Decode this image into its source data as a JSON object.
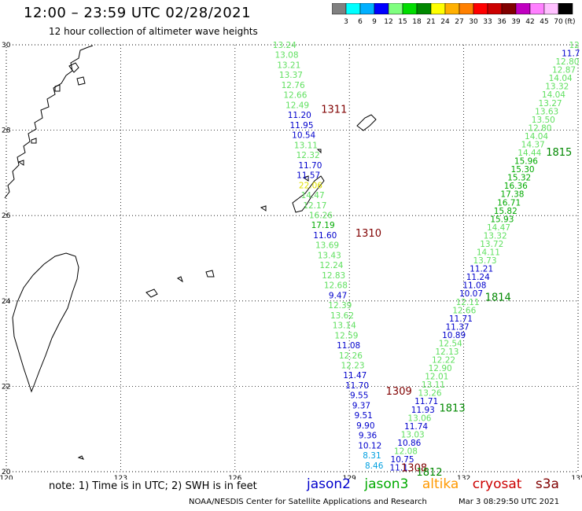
{
  "header": {
    "title": "12:00 – 23:59 UTC 02/28/2021",
    "subtitle": "12 hour collection of altimeter wave heights"
  },
  "colorbar": {
    "labels": [
      "3",
      "6",
      "9",
      "12",
      "15",
      "18",
      "21",
      "24",
      "27",
      "30",
      "33",
      "36",
      "39",
      "42",
      "45",
      "70"
    ],
    "colors": [
      "#808080",
      "#00ffff",
      "#00b0ff",
      "#0000ff",
      "#80ff80",
      "#00dd00",
      "#008800",
      "#ffff00",
      "#ffb000",
      "#ff8000",
      "#ff0000",
      "#cc0000",
      "#800000",
      "#c000c0",
      "#ff80ff",
      "#ff c0ff",
      "#000000"
    ],
    "unit": "(ft)"
  },
  "axes": {
    "lat_labels": [
      "30",
      "28",
      "26",
      "24",
      "22",
      "20"
    ],
    "lon_labels": [
      "120",
      "123",
      "126",
      "129",
      "132",
      "135"
    ]
  },
  "passes": [
    {
      "id": "1311",
      "color": "#800000",
      "lat": 28.5,
      "lon": 128.6
    },
    {
      "id": "1310",
      "color": "#800000",
      "lat": 25.6,
      "lon": 129.5
    },
    {
      "id": "1309",
      "color": "#800000",
      "lat": 21.9,
      "lon": 130.3
    },
    {
      "id": "1308",
      "color": "#800000",
      "lat": 20.1,
      "lon": 130.7
    },
    {
      "id": "1815",
      "color": "#008800",
      "lat": 27.5,
      "lon": 134.5
    },
    {
      "id": "1814",
      "color": "#008800",
      "lat": 24.1,
      "lon": 132.9
    },
    {
      "id": "1813",
      "color": "#008800",
      "lat": 21.5,
      "lon": 131.7
    },
    {
      "id": "1812",
      "color": "#008800",
      "lat": 20.0,
      "lon": 131.1
    }
  ],
  "track_west": [
    {
      "v": "13.24",
      "c": "#60e060"
    },
    {
      "v": "13.08",
      "c": "#60e060"
    },
    {
      "v": "13.21",
      "c": "#60e060"
    },
    {
      "v": "13.37",
      "c": "#60e060"
    },
    {
      "v": "12.76",
      "c": "#60e060"
    },
    {
      "v": "12.66",
      "c": "#60e060"
    },
    {
      "v": "12.49",
      "c": "#60e060"
    },
    {
      "v": "11.20",
      "c": "#0000cc"
    },
    {
      "v": "11.95",
      "c": "#0000cc"
    },
    {
      "v": "10.54",
      "c": "#0000cc"
    },
    {
      "v": "13.11",
      "c": "#60e060"
    },
    {
      "v": "12.32",
      "c": "#60e060"
    },
    {
      "v": "11.70",
      "c": "#0000cc"
    },
    {
      "v": "11.57",
      "c": "#0000cc"
    },
    {
      "v": "22.06",
      "c": "#e0e000"
    },
    {
      "v": "14.47",
      "c": "#60e060"
    },
    {
      "v": "12.17",
      "c": "#60e060"
    },
    {
      "v": "16.26",
      "c": "#60e060"
    },
    {
      "v": "17.19",
      "c": "#00aa00"
    },
    {
      "v": "11.60",
      "c": "#0000cc"
    },
    {
      "v": "13.69",
      "c": "#60e060"
    },
    {
      "v": "13.43",
      "c": "#60e060"
    },
    {
      "v": "12.24",
      "c": "#60e060"
    },
    {
      "v": "12.83",
      "c": "#60e060"
    },
    {
      "v": "12.68",
      "c": "#60e060"
    },
    {
      "v": "9.47",
      "c": "#0000cc"
    },
    {
      "v": "12.39",
      "c": "#60e060"
    },
    {
      "v": "13.62",
      "c": "#60e060"
    },
    {
      "v": "13.14",
      "c": "#60e060"
    },
    {
      "v": "12.59",
      "c": "#60e060"
    },
    {
      "v": "11.08",
      "c": "#0000cc"
    },
    {
      "v": "12.26",
      "c": "#60e060"
    },
    {
      "v": "12.23",
      "c": "#60e060"
    },
    {
      "v": "11.47",
      "c": "#0000cc"
    },
    {
      "v": "11.70",
      "c": "#0000cc"
    },
    {
      "v": "9.55",
      "c": "#0000cc"
    },
    {
      "v": "9.37",
      "c": "#0000cc"
    },
    {
      "v": "9.51",
      "c": "#0000cc"
    },
    {
      "v": "9.90",
      "c": "#0000cc"
    },
    {
      "v": "9.36",
      "c": "#0000cc"
    },
    {
      "v": "10.12",
      "c": "#0000cc"
    },
    {
      "v": "8.31",
      "c": "#00a0e0"
    },
    {
      "v": "8.46",
      "c": "#00a0e0"
    }
  ],
  "track_east": [
    {
      "v": "12",
      "c": "#60e060"
    },
    {
      "v": "11.7",
      "c": "#0000cc"
    },
    {
      "v": "12.80",
      "c": "#60e060"
    },
    {
      "v": "12.87",
      "c": "#60e060"
    },
    {
      "v": "14.04",
      "c": "#60e060"
    },
    {
      "v": "13.32",
      "c": "#60e060"
    },
    {
      "v": "14.04",
      "c": "#60e060"
    },
    {
      "v": "13.27",
      "c": "#60e060"
    },
    {
      "v": "13.63",
      "c": "#60e060"
    },
    {
      "v": "13.50",
      "c": "#60e060"
    },
    {
      "v": "12.80",
      "c": "#60e060"
    },
    {
      "v": "14.04",
      "c": "#60e060"
    },
    {
      "v": "14.37",
      "c": "#60e060"
    },
    {
      "v": "14.44",
      "c": "#60e060"
    },
    {
      "v": "15.96",
      "c": "#00aa00"
    },
    {
      "v": "15.30",
      "c": "#00aa00"
    },
    {
      "v": "15.32",
      "c": "#00aa00"
    },
    {
      "v": "16.36",
      "c": "#00aa00"
    },
    {
      "v": "17.38",
      "c": "#00aa00"
    },
    {
      "v": "16.71",
      "c": "#00aa00"
    },
    {
      "v": "15.82",
      "c": "#00aa00"
    },
    {
      "v": "15.93",
      "c": "#00aa00"
    },
    {
      "v": "14.47",
      "c": "#60e060"
    },
    {
      "v": "13.32",
      "c": "#60e060"
    },
    {
      "v": "13.72",
      "c": "#60e060"
    },
    {
      "v": "14.11",
      "c": "#60e060"
    },
    {
      "v": "13.73",
      "c": "#60e060"
    },
    {
      "v": "11.21",
      "c": "#0000cc"
    },
    {
      "v": "11.24",
      "c": "#0000cc"
    },
    {
      "v": "11.08",
      "c": "#0000cc"
    },
    {
      "v": "10.07",
      "c": "#0000cc"
    },
    {
      "v": "12.11",
      "c": "#60e060"
    },
    {
      "v": "12.66",
      "c": "#60e060"
    },
    {
      "v": "11.71",
      "c": "#0000cc"
    },
    {
      "v": "11.37",
      "c": "#0000cc"
    },
    {
      "v": "10.89",
      "c": "#0000cc"
    },
    {
      "v": "12.54",
      "c": "#60e060"
    },
    {
      "v": "12.13",
      "c": "#60e060"
    },
    {
      "v": "12.22",
      "c": "#60e060"
    },
    {
      "v": "12.90",
      "c": "#60e060"
    },
    {
      "v": "12.01",
      "c": "#60e060"
    },
    {
      "v": "13.11",
      "c": "#60e060"
    },
    {
      "v": "13.26",
      "c": "#60e060"
    },
    {
      "v": "11.71",
      "c": "#0000cc"
    },
    {
      "v": "11.93",
      "c": "#0000cc"
    },
    {
      "v": "13.06",
      "c": "#60e060"
    },
    {
      "v": "11.74",
      "c": "#0000cc"
    },
    {
      "v": "13.03",
      "c": "#60e060"
    },
    {
      "v": "10.86",
      "c": "#0000cc"
    },
    {
      "v": "12.08",
      "c": "#60e060"
    },
    {
      "v": "10.75",
      "c": "#0000cc"
    },
    {
      "v": "11.1",
      "c": "#0000cc"
    }
  ],
  "footer": {
    "note": "note: 1) Time is in UTC; 2) SWH is in feet",
    "legend": [
      {
        "label": "jason2",
        "color": "#0000cc"
      },
      {
        "label": "jason3",
        "color": "#00aa00"
      },
      {
        "label": "altika",
        "color": "#ff9900"
      },
      {
        "label": "cryosat",
        "color": "#cc0000"
      },
      {
        "label": "s3a",
        "color": "#800000"
      }
    ],
    "credit": "NOAA/NESDIS Center for Satellite Applications and Research",
    "timestamp": "Mar  3 08:29:50 UTC 2021"
  }
}
